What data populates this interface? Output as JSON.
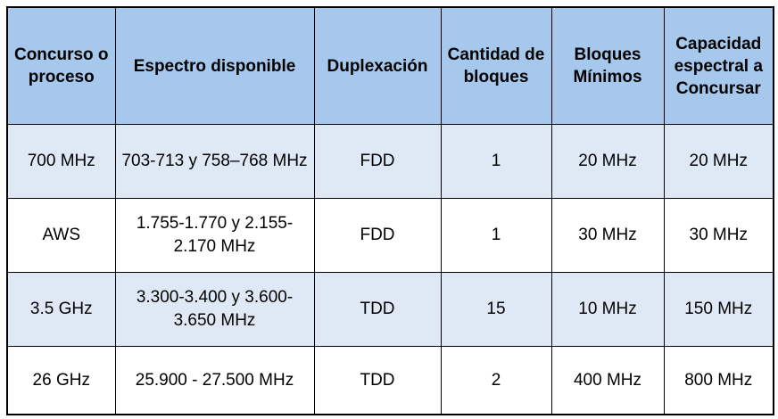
{
  "table": {
    "headers": [
      "Concurso o proceso",
      "Espectro disponible",
      "Duplexación",
      "Cantidad de bloques",
      "Bloques Mínimos",
      "Capacidad espectral a Concursar"
    ],
    "rows": [
      [
        "700 MHz",
        "703-713 y 758–768 MHz",
        "FDD",
        "1",
        "20 MHz",
        "20 MHz"
      ],
      [
        "AWS",
        "1.755-1.770 y 2.155-2.170 MHz",
        "FDD",
        "1",
        "30 MHz",
        "30 MHz"
      ],
      [
        "3.5 GHz",
        "3.300-3.400 y 3.600-3.650 MHz",
        "TDD",
        "15",
        "10 MHz",
        "150 MHz"
      ],
      [
        "26 GHz",
        "25.900 - 27.500 MHz",
        "TDD",
        "2",
        "400 MHz",
        "800 MHz"
      ]
    ]
  },
  "colors": {
    "header_bg": "#a6c8ec",
    "shaded_row_bg": "#dfe9f6",
    "plain_row_bg": "#ffffff",
    "border": "#000000"
  }
}
